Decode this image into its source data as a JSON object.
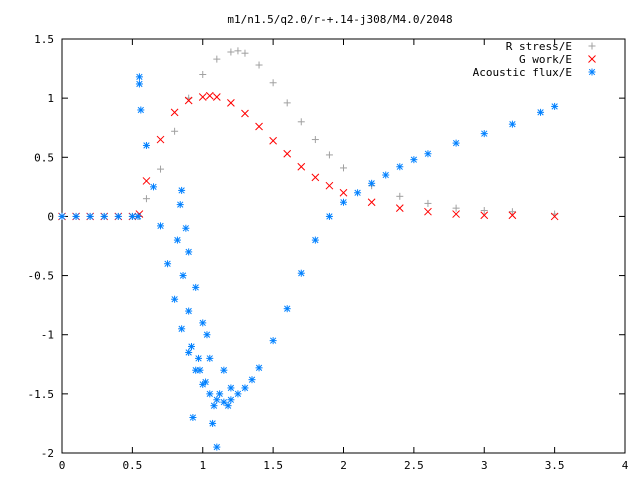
{
  "chart_data": {
    "type": "scatter",
    "title": "m1/n1.5/q2.0/r-+.14-j308/M4.0/2048",
    "xlabel": "",
    "ylabel": "",
    "xlim": [
      0,
      4
    ],
    "ylim": [
      -2,
      1.5
    ],
    "x_ticks": [
      "0",
      "0.5",
      "1",
      "1.5",
      "2",
      "2.5",
      "3",
      "3.5",
      "4"
    ],
    "y_ticks": [
      "1.5",
      "1",
      "0.5",
      "0",
      "-0.5",
      "-1",
      "-1.5",
      "-2"
    ],
    "grid": false,
    "legend_position": "top-right",
    "series": [
      {
        "name": "R stress/E",
        "marker": "+",
        "color": "#a0a0a0",
        "x": [
          0.0,
          0.1,
          0.2,
          0.3,
          0.4,
          0.5,
          0.55,
          0.6,
          0.7,
          0.8,
          0.9,
          1.0,
          1.1,
          1.2,
          1.25,
          1.3,
          1.4,
          1.5,
          1.6,
          1.7,
          1.8,
          1.9,
          2.0,
          2.2,
          2.4,
          2.6,
          2.8,
          3.0,
          3.2,
          3.5
        ],
        "y": [
          0.0,
          0.0,
          0.0,
          0.0,
          0.0,
          0.0,
          0.0,
          0.15,
          0.4,
          0.72,
          1.0,
          1.2,
          1.33,
          1.39,
          1.4,
          1.38,
          1.28,
          1.13,
          0.96,
          0.8,
          0.65,
          0.52,
          0.41,
          0.26,
          0.17,
          0.11,
          0.07,
          0.05,
          0.04,
          0.02
        ]
      },
      {
        "name": "G work/E",
        "marker": "x",
        "color": "#ff0000",
        "x": [
          0.0,
          0.1,
          0.2,
          0.3,
          0.4,
          0.5,
          0.55,
          0.6,
          0.7,
          0.8,
          0.9,
          1.0,
          1.05,
          1.1,
          1.2,
          1.3,
          1.4,
          1.5,
          1.6,
          1.7,
          1.8,
          1.9,
          2.0,
          2.2,
          2.4,
          2.6,
          2.8,
          3.0,
          3.2,
          3.5
        ],
        "y": [
          0.0,
          0.0,
          0.0,
          0.0,
          0.0,
          0.0,
          0.02,
          0.3,
          0.65,
          0.88,
          0.98,
          1.01,
          1.02,
          1.01,
          0.96,
          0.87,
          0.76,
          0.64,
          0.53,
          0.42,
          0.33,
          0.26,
          0.2,
          0.12,
          0.07,
          0.04,
          0.02,
          0.01,
          0.01,
          0.0
        ]
      },
      {
        "name": "Acoustic flux/E",
        "marker": "*",
        "color": "#0080ff",
        "x": [
          0.0,
          0.1,
          0.2,
          0.3,
          0.4,
          0.5,
          0.54,
          0.55,
          0.55,
          0.56,
          0.6,
          0.65,
          0.7,
          0.75,
          0.8,
          0.85,
          0.9,
          0.95,
          1.0,
          1.05,
          1.1,
          1.15,
          1.2,
          1.25,
          1.3,
          1.35,
          1.4,
          1.5,
          1.6,
          1.7,
          1.8,
          1.9,
          2.0,
          2.1,
          2.2,
          2.3,
          2.4,
          2.5,
          2.6,
          2.8,
          3.0,
          3.2,
          3.4,
          3.5,
          0.82,
          0.84,
          0.86,
          0.88,
          0.9,
          0.92,
          0.95,
          0.98,
          1.0,
          1.02,
          1.05,
          1.08,
          1.1,
          1.12,
          1.15,
          1.18,
          1.2,
          0.85,
          0.9,
          0.93,
          0.97,
          1.03,
          1.07
        ],
        "y": [
          0.0,
          0.0,
          0.0,
          0.0,
          0.0,
          0.0,
          0.0,
          1.18,
          1.12,
          0.9,
          0.6,
          0.25,
          -0.08,
          -0.4,
          -0.7,
          -0.95,
          -1.15,
          -1.3,
          -1.42,
          -1.5,
          -1.55,
          -1.57,
          -1.55,
          -1.5,
          -1.45,
          -1.38,
          -1.28,
          -1.05,
          -0.78,
          -0.48,
          -0.2,
          0.0,
          0.12,
          0.2,
          0.28,
          0.35,
          0.42,
          0.48,
          0.53,
          0.62,
          0.7,
          0.78,
          0.88,
          0.93,
          -0.2,
          0.1,
          -0.5,
          -0.1,
          -0.8,
          -1.1,
          -0.6,
          -1.3,
          -0.9,
          -1.4,
          -1.2,
          -1.6,
          -1.95,
          -1.5,
          -1.3,
          -1.6,
          -1.45,
          0.22,
          -0.3,
          -1.7,
          -1.2,
          -1.0,
          -1.75
        ]
      }
    ]
  }
}
